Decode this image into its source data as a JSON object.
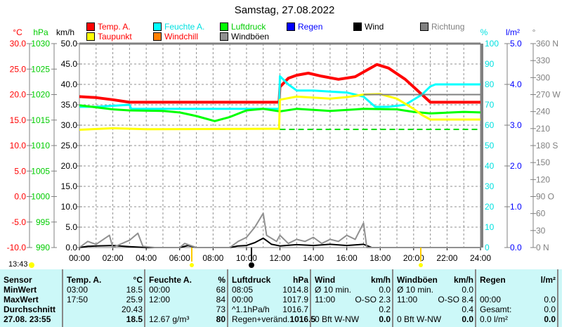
{
  "title": "Samstag, 27.08.2022",
  "legend": [
    {
      "label": "Temp. A.",
      "color": "#ff0000",
      "text_color": "#ff0000"
    },
    {
      "label": "Feuchte A.",
      "color": "#00ffff",
      "text_color": "#00e0e0"
    },
    {
      "label": "Luftdruck",
      "color": "#00ff00",
      "text_color": "#00cc00"
    },
    {
      "label": "Regen",
      "color": "#0000ff",
      "text_color": "#0000ff"
    },
    {
      "label": "Wind",
      "color": "#000000",
      "text_color": "#000000"
    },
    {
      "label": "Richtung",
      "color": "#808080",
      "text_color": "#808080"
    },
    {
      "label": "Taupunkt",
      "color": "#ffff00",
      "text_color": "#ff0000"
    },
    {
      "label": "Windchill",
      "color": "#ff8000",
      "text_color": "#ff0000"
    },
    {
      "label": "Windböen",
      "color": "#909090",
      "text_color": "#000000"
    }
  ],
  "axes": {
    "temp": {
      "unit": "°C",
      "ticks": [
        "30.0",
        "25.0",
        "20.0",
        "15.0",
        "10.0",
        "5.0",
        "0.0",
        "-5.0",
        "-10.0"
      ]
    },
    "pressure": {
      "unit": "hPa",
      "ticks": [
        "1030",
        "1025",
        "1020",
        "1015",
        "1010",
        "1005",
        "1000",
        "995",
        "990"
      ]
    },
    "wind": {
      "unit": "km/h",
      "ticks": [
        "50.0",
        "45.0",
        "40.0",
        "35.0",
        "30.0",
        "25.0",
        "20.0",
        "15.0",
        "10.0",
        "5.0",
        "0.0"
      ]
    },
    "humidity": {
      "unit": "%",
      "ticks": [
        "100",
        "90",
        "80",
        "70",
        "60",
        "50",
        "40",
        "30",
        "20",
        "10",
        "0"
      ]
    },
    "rain": {
      "unit": "l/m²",
      "ticks": [
        "5.0",
        "4.0",
        "3.0",
        "2.0",
        "1.0",
        "0.0"
      ]
    },
    "direction": {
      "unit": "°",
      "ticks": [
        "360 N",
        "330",
        "300",
        "270 W",
        "240",
        "210",
        "180 S",
        "150",
        "120",
        "90  O",
        "60",
        "30",
        "0   N"
      ]
    },
    "x": {
      "ticks": [
        "00:00",
        "02:00",
        "04:00",
        "06:00",
        "08:00",
        "10:00",
        "12:00",
        "14:00",
        "16:00",
        "18:00",
        "20:00",
        "22:00",
        "24:00"
      ]
    }
  },
  "sun_time": "13:43",
  "chart_data": {
    "type": "line",
    "title": "Samstag, 27.08.2022",
    "xlim": [
      0,
      24
    ],
    "series": [
      {
        "name": "Temp. A.",
        "axis": "°C",
        "color": "#ff0000",
        "points": [
          [
            0,
            19.6
          ],
          [
            1,
            19.4
          ],
          [
            2,
            19.0
          ],
          [
            3,
            18.5
          ],
          [
            11.95,
            18.5
          ],
          [
            12,
            21.5
          ],
          [
            12.5,
            23.2
          ],
          [
            13,
            23.8
          ],
          [
            13.7,
            24.2
          ],
          [
            14.5,
            23.6
          ],
          [
            15.5,
            23.0
          ],
          [
            16.5,
            23.5
          ],
          [
            17.2,
            24.8
          ],
          [
            17.8,
            25.9
          ],
          [
            18.5,
            25.2
          ],
          [
            19.5,
            23.0
          ],
          [
            20.5,
            20.0
          ],
          [
            21,
            18.5
          ],
          [
            24,
            18.5
          ]
        ]
      },
      {
        "name": "Feuchte A.",
        "axis": "%",
        "color": "#00ffff",
        "points": [
          [
            0,
            69
          ],
          [
            1,
            69
          ],
          [
            3,
            70
          ],
          [
            3.1,
            68
          ],
          [
            11.95,
            68
          ],
          [
            12,
            84
          ],
          [
            12.5,
            80
          ],
          [
            13,
            77
          ],
          [
            14,
            77
          ],
          [
            15,
            76.5
          ],
          [
            16,
            76
          ],
          [
            17,
            74
          ],
          [
            17.7,
            69
          ],
          [
            18.5,
            69
          ],
          [
            19.5,
            70
          ],
          [
            20.5,
            75
          ],
          [
            21,
            79
          ],
          [
            21.3,
            80
          ],
          [
            24,
            80
          ]
        ]
      },
      {
        "name": "Luftdruck",
        "axis": "hPa",
        "color": "#00ff00",
        "points": [
          [
            0,
            1017.9
          ],
          [
            1,
            1017.5
          ],
          [
            2,
            1017.1
          ],
          [
            3,
            1016.9
          ],
          [
            5,
            1016.8
          ],
          [
            6,
            1016.5
          ],
          [
            7,
            1015.8
          ],
          [
            8.1,
            1014.8
          ],
          [
            9,
            1015.6
          ],
          [
            10,
            1016.9
          ],
          [
            11,
            1017.2
          ],
          [
            12,
            1016.7
          ],
          [
            13,
            1017.2
          ],
          [
            15,
            1016.8
          ],
          [
            17,
            1017.2
          ],
          [
            19,
            1017.1
          ],
          [
            20,
            1016.6
          ],
          [
            21,
            1016.3
          ],
          [
            23,
            1016.6
          ],
          [
            24,
            1016.5
          ]
        ]
      },
      {
        "name": "Taupunkt",
        "axis": "°C",
        "color": "#ffff00",
        "points": [
          [
            0,
            13.1
          ],
          [
            2,
            13.4
          ],
          [
            4,
            13.2
          ],
          [
            11.95,
            13.3
          ],
          [
            12,
            19.0
          ],
          [
            13,
            19.6
          ],
          [
            15,
            19.2
          ],
          [
            16,
            19.5
          ],
          [
            17,
            20.0
          ],
          [
            18,
            20.1
          ],
          [
            19,
            19.2
          ],
          [
            20,
            17.2
          ],
          [
            20.5,
            16.0
          ],
          [
            21,
            15.1
          ],
          [
            24,
            15.1
          ]
        ]
      },
      {
        "name": "Wind",
        "axis": "km/h",
        "color": "#000000",
        "points": [
          [
            0,
            0
          ],
          [
            0.5,
            0.3
          ],
          [
            1,
            0.4
          ],
          [
            2,
            0.5
          ],
          [
            3,
            0.2
          ],
          [
            4,
            0
          ],
          [
            6,
            0
          ],
          [
            6.5,
            0.5
          ],
          [
            7,
            0
          ],
          [
            9,
            0
          ],
          [
            9.5,
            0.4
          ],
          [
            10,
            0.5
          ],
          [
            10.5,
            1.2
          ],
          [
            11,
            2.3
          ],
          [
            11.5,
            0.8
          ],
          [
            12,
            0.4
          ],
          [
            13,
            0.7
          ],
          [
            14,
            0.5
          ],
          [
            15,
            0.8
          ],
          [
            16,
            0.5
          ],
          [
            17,
            0.8
          ],
          [
            17.5,
            0
          ],
          [
            24,
            0
          ]
        ]
      },
      {
        "name": "Windböen",
        "axis": "km/h",
        "color": "#909090",
        "points": [
          [
            0,
            0
          ],
          [
            0.5,
            1.5
          ],
          [
            1,
            0.8
          ],
          [
            1.8,
            3
          ],
          [
            2,
            0
          ],
          [
            3,
            1.8
          ],
          [
            3.5,
            3.5
          ],
          [
            3.8,
            0.3
          ],
          [
            4.5,
            0
          ],
          [
            6,
            0
          ],
          [
            6.3,
            1
          ],
          [
            7,
            0
          ],
          [
            9,
            0
          ],
          [
            9.5,
            1.5
          ],
          [
            10,
            2.5
          ],
          [
            10.5,
            5
          ],
          [
            11,
            8.4
          ],
          [
            11.2,
            3
          ],
          [
            11.8,
            1.5
          ],
          [
            12,
            3
          ],
          [
            12.5,
            1
          ],
          [
            13,
            2
          ],
          [
            13.5,
            1.5
          ],
          [
            14,
            2.5
          ],
          [
            14.5,
            1
          ],
          [
            15,
            2
          ],
          [
            15.5,
            1.5
          ],
          [
            16,
            3
          ],
          [
            16.5,
            2
          ],
          [
            17,
            6
          ],
          [
            17.2,
            0
          ],
          [
            24,
            0
          ]
        ]
      },
      {
        "name": "Richtung",
        "axis": "°",
        "color": "#808080",
        "points": [
          [
            17,
            270
          ],
          [
            24,
            270
          ]
        ]
      }
    ]
  },
  "table": {
    "columns": [
      {
        "header": "Sensor",
        "unit": "",
        "rows": [
          [
            "MinWert",
            ""
          ],
          [
            "MaxWert",
            ""
          ],
          [
            "Durchschnitt",
            ""
          ],
          [
            "27.08. 23:55",
            ""
          ]
        ]
      },
      {
        "header": "Temp. A.",
        "unit": "°C",
        "rows": [
          [
            "03:00",
            "18.5"
          ],
          [
            "17:50",
            "25.9"
          ],
          [
            "",
            "20.43"
          ],
          [
            "",
            "18.5"
          ]
        ]
      },
      {
        "header": "Feuchte A.",
        "unit": "%",
        "rows": [
          [
            "00:00",
            "68"
          ],
          [
            "12:00",
            "84"
          ],
          [
            "",
            "73"
          ],
          [
            "12.67 g/m³",
            "80"
          ]
        ]
      },
      {
        "header": "Luftdruck",
        "unit": "hPa",
        "rows": [
          [
            "08:05",
            "1014.8"
          ],
          [
            "00:00",
            "1017.9"
          ],
          [
            "^1.1hPa/h",
            "1016.7"
          ],
          [
            "Regen+veränd.",
            "1016.5"
          ]
        ]
      },
      {
        "header": "Wind",
        "unit": "km/h",
        "rows": [
          [
            "Ø 10 min.",
            "0.0"
          ],
          [
            "11:00",
            "O-SO 2.3"
          ],
          [
            "",
            "0.2"
          ],
          [
            "0 Bft W-NW",
            "0.0"
          ]
        ]
      },
      {
        "header": "Windböen",
        "unit": "km/h",
        "rows": [
          [
            "Ø 10 min.",
            "0.0"
          ],
          [
            "11:00",
            "O-SO 8.4"
          ],
          [
            "",
            "0.4"
          ],
          [
            "0 Bft W-NW",
            "0.0"
          ]
        ]
      },
      {
        "header": "Regen",
        "unit": "l/m²",
        "rows": [
          [
            "",
            ""
          ],
          [
            "00:00",
            "0.0"
          ],
          [
            "Gesamt:",
            "0.0"
          ],
          [
            "0.0 l/m²",
            "0.0"
          ]
        ]
      }
    ]
  }
}
